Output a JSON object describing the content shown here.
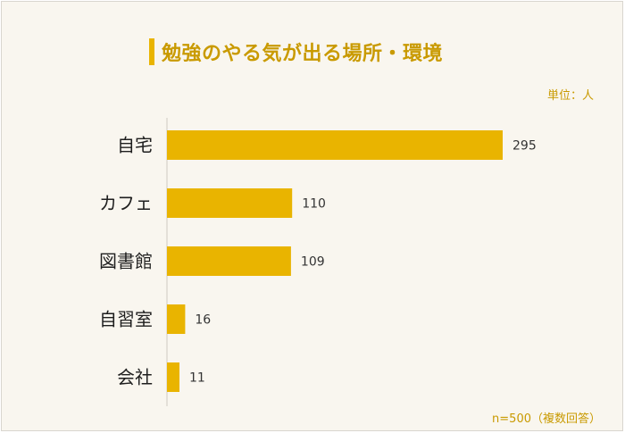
{
  "title": "勉強のやる気が出る場所・環境",
  "unit_label": "単位：人",
  "note": "n=500（複数回答）",
  "colors": {
    "bar": "#e9b400",
    "title": "#c99a00",
    "axis": "#cfcac2",
    "label": "#1f1f1f",
    "value": "#333333",
    "background": "#f9f6ef"
  },
  "chart_data": {
    "type": "bar",
    "orientation": "horizontal",
    "categories": [
      "自宅",
      "カフェ",
      "図書館",
      "自習室",
      "会社"
    ],
    "values": [
      295,
      110,
      109,
      16,
      11
    ],
    "title": "勉強のやる気が出る場所・環境",
    "unit": "単位：人",
    "xlabel": "",
    "ylabel": "",
    "xlim": [
      0,
      295
    ],
    "grid": false,
    "legend": false
  }
}
